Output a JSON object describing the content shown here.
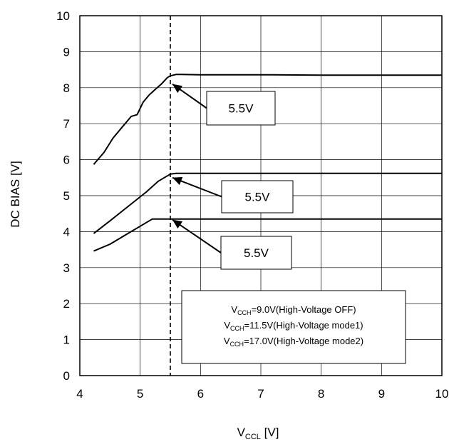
{
  "chart_data": {
    "type": "line",
    "xlabel": {
      "main": "V",
      "sub": "CCL",
      "unit": " [V]"
    },
    "ylabel": "DC BIAS [V]",
    "xlim": [
      4,
      10
    ],
    "ylim": [
      0,
      10
    ],
    "xticks": [
      "4",
      "5",
      "6",
      "7",
      "8",
      "9",
      "10"
    ],
    "yticks": [
      "0",
      "1",
      "2",
      "3",
      "4",
      "5",
      "6",
      "7",
      "8",
      "9",
      "10"
    ],
    "grid": true,
    "reference_line": {
      "x": 5.5,
      "style": "dashed"
    },
    "series": [
      {
        "x": [
          4.23,
          4.4,
          4.55,
          4.7,
          4.85,
          4.95,
          5.05,
          5.15,
          5.25,
          5.35,
          5.45,
          5.5,
          5.6,
          6,
          7,
          8,
          9,
          10
        ],
        "y": [
          5.87,
          6.2,
          6.6,
          6.9,
          7.2,
          7.25,
          7.6,
          7.8,
          7.95,
          8.1,
          8.28,
          8.33,
          8.37,
          8.36,
          8.36,
          8.35,
          8.35,
          8.35
        ]
      },
      {
        "x": [
          4.23,
          4.5,
          4.8,
          5.1,
          5.3,
          5.5,
          5.6,
          6,
          7,
          8,
          9,
          10
        ],
        "y": [
          3.95,
          4.3,
          4.7,
          5.1,
          5.4,
          5.6,
          5.62,
          5.62,
          5.62,
          5.62,
          5.62,
          5.62
        ]
      },
      {
        "x": [
          4.23,
          4.5,
          4.8,
          5.0,
          5.2,
          5.3,
          5.5,
          6,
          7,
          8,
          9,
          10
        ],
        "y": [
          3.46,
          3.65,
          3.95,
          4.15,
          4.35,
          4.35,
          4.35,
          4.35,
          4.35,
          4.35,
          4.35,
          4.35
        ]
      }
    ],
    "annotations": [
      {
        "text": "5.5V",
        "arrow_to": [
          5.5,
          8.1
        ]
      },
      {
        "text": "5.5V",
        "arrow_to": [
          5.5,
          5.5
        ]
      },
      {
        "text": "5.5V",
        "arrow_to": [
          5.5,
          4.33
        ]
      }
    ],
    "legend_box": {
      "placement": "bottom-right",
      "lines": [
        {
          "prefix": "V",
          "sub": "CCH",
          "text": "=9.0V(High-Voltage OFF)"
        },
        {
          "prefix": "V",
          "sub": "CCH",
          "text": "=11.5V(High-Voltage mode1)"
        },
        {
          "prefix": "V",
          "sub": "CCH",
          "text": "=17.0V(High-Voltage mode2)"
        }
      ]
    }
  }
}
